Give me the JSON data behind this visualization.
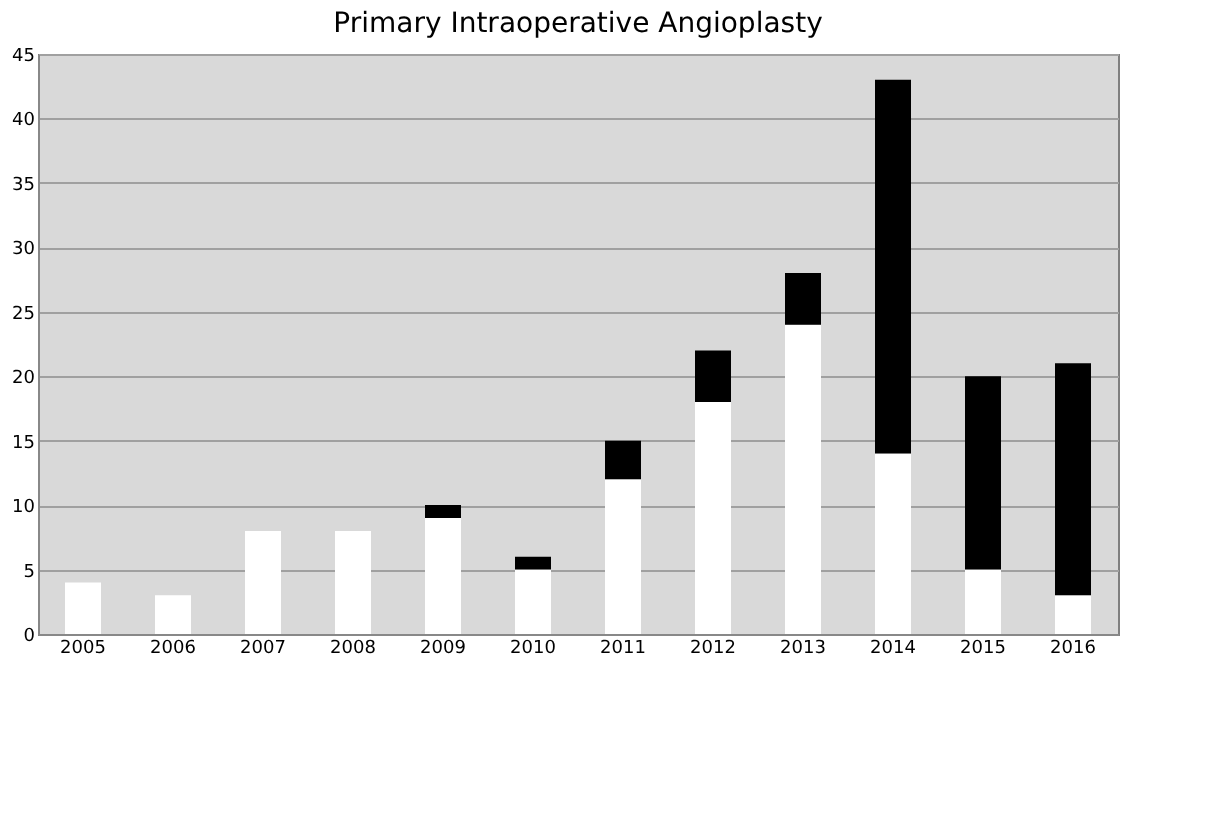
{
  "chart_data": {
    "type": "bar",
    "title": "Primary Intraoperative Angioplasty",
    "stacked": true,
    "categories": [
      "2005",
      "2006",
      "2007",
      "2008",
      "2009",
      "2010",
      "2011",
      "2012",
      "2013",
      "2014",
      "2015",
      "2016"
    ],
    "series": [
      {
        "color": "#ffffff",
        "values": [
          4,
          3,
          8,
          8,
          9,
          5,
          12,
          18,
          24,
          14,
          5,
          3
        ]
      },
      {
        "color": "#000000",
        "values": [
          null,
          null,
          null,
          null,
          1,
          1,
          3,
          4,
          4,
          29,
          15,
          18
        ]
      }
    ],
    "ylim": [
      0,
      45
    ],
    "yticks": [
      0,
      5,
      10,
      15,
      20,
      25,
      30,
      35,
      40,
      45
    ],
    "grid": "y",
    "legend": false
  }
}
